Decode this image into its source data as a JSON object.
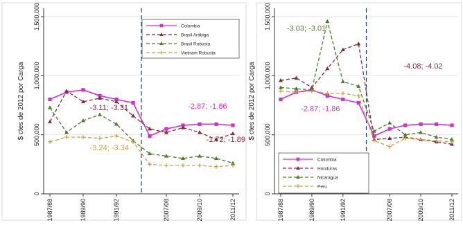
{
  "chart_data": [
    {
      "type": "line",
      "ylabel": "$ ctes de 2012 por Carga",
      "ylim": [
        0,
        1500000
      ],
      "yticks": [
        {
          "value": 0,
          "label": "0"
        },
        {
          "value": 500000,
          "label": "500,000"
        },
        {
          "value": 1000000,
          "label": "1,000,000"
        },
        {
          "value": 1500000,
          "label": "1,500,000"
        }
      ],
      "categories": [
        "1987/88",
        "1988/89",
        "1989/90",
        "1990/91",
        "1991/92",
        "1992/93",
        "2006/07",
        "2007/08",
        "2008/09",
        "2009/10",
        "2010/11",
        "2011/12"
      ],
      "xtick_labels": [
        {
          "index": 0,
          "label": "1987/88"
        },
        {
          "index": 2,
          "label": "1989/90"
        },
        {
          "index": 4,
          "label": "1991/92"
        },
        {
          "index": 7,
          "label": "2007/08"
        },
        {
          "index": 9,
          "label": "2009/10"
        },
        {
          "index": 11,
          "label": "2011/12"
        }
      ],
      "break_after_index": 5.5,
      "legend_position": "top-right",
      "series": [
        {
          "name": "Colombia",
          "color": "#cc33cc",
          "dash": "",
          "marker": "square",
          "values": [
            800000,
            860000,
            880000,
            830000,
            800000,
            770000,
            490000,
            550000,
            580000,
            590000,
            590000,
            580000
          ]
        },
        {
          "name": "Brasil Arábiga",
          "color": "#7a2e3a",
          "dash": "5,3",
          "marker": "triangle",
          "values": [
            610000,
            870000,
            780000,
            810000,
            780000,
            660000,
            550000,
            520000,
            560000,
            520000,
            460000,
            510000
          ]
        },
        {
          "name": "Brasil Robusta",
          "color": "#4a7a2a",
          "dash": "5,3",
          "marker": "triangle",
          "values": [
            730000,
            520000,
            620000,
            670000,
            590000,
            450000,
            340000,
            320000,
            300000,
            320000,
            300000,
            260000
          ]
        },
        {
          "name": "Vietnam Robusta",
          "color": "#c8a040",
          "dash": "5,3",
          "marker": "plus",
          "values": [
            440000,
            480000,
            480000,
            470000,
            490000,
            440000,
            250000,
            240000,
            240000,
            240000,
            230000,
            240000
          ]
        }
      ],
      "annotations": [
        {
          "text": "-3.11; -3.31",
          "color": "#7a2e3a",
          "x": 2.4,
          "y": 710000
        },
        {
          "text": "-3.24; -3.34",
          "color": "#c8a040",
          "x": 2.4,
          "y": 370000
        },
        {
          "text": "-2.87; -1.86",
          "color": "#cc33cc",
          "x": 8.3,
          "y": 720000
        },
        {
          "text": "-1.72; -1.89",
          "color": "#7a2e3a",
          "x": 9.4,
          "y": 440000
        }
      ]
    },
    {
      "type": "line",
      "ylabel": "$ ctes de 2012 por Carga",
      "ylim": [
        0,
        1500000
      ],
      "yticks": [
        {
          "value": 0,
          "label": "0"
        },
        {
          "value": 500000,
          "label": "500,000"
        },
        {
          "value": 1000000,
          "label": "1,000,000"
        },
        {
          "value": 1500000,
          "label": "1,500,000"
        }
      ],
      "categories": [
        "1987/88",
        "1988/89",
        "1989/90",
        "1990/91",
        "1991/92",
        "1992/93",
        "2006/07",
        "2007/08",
        "2008/09",
        "2009/10",
        "2010/11",
        "2011/12"
      ],
      "xtick_labels": [
        {
          "index": 0,
          "label": "1987/88"
        },
        {
          "index": 2,
          "label": "1989/90"
        },
        {
          "index": 4,
          "label": "1991/92"
        },
        {
          "index": 7,
          "label": "2007/08"
        },
        {
          "index": 9,
          "label": "2009/10"
        },
        {
          "index": 11,
          "label": "2011/12"
        }
      ],
      "break_after_index": 5.5,
      "legend_position": "bottom-left",
      "series": [
        {
          "name": "Colombia",
          "color": "#cc33cc",
          "dash": "",
          "marker": "square",
          "values": [
            800000,
            860000,
            880000,
            830000,
            800000,
            770000,
            490000,
            550000,
            580000,
            590000,
            590000,
            580000
          ]
        },
        {
          "name": "Honduras",
          "color": "#7a2e3a",
          "dash": "5,3",
          "marker": "triangle",
          "values": [
            960000,
            980000,
            900000,
            1060000,
            1220000,
            1270000,
            460000,
            470000,
            480000,
            460000,
            440000,
            420000
          ]
        },
        {
          "name": "Nicaragua",
          "color": "#4a7a2a",
          "dash": "5,3",
          "marker": "triangle",
          "values": [
            900000,
            890000,
            880000,
            1460000,
            950000,
            910000,
            530000,
            600000,
            500000,
            520000,
            480000,
            460000
          ]
        },
        {
          "name": "Peru",
          "color": "#c8a040",
          "dash": "5,3",
          "marker": "plus",
          "values": [
            870000,
            860000,
            870000,
            850000,
            850000,
            830000,
            450000,
            400000,
            470000,
            460000,
            450000,
            440000
          ]
        }
      ],
      "annotations": [
        {
          "text": "-3.03; -3.01",
          "color": "#4a7a2a",
          "x": 0.4,
          "y": 1380000
        },
        {
          "text": "-2.87; -1.86",
          "color": "#cc33cc",
          "x": 1.3,
          "y": 700000
        },
        {
          "text": "-4.08; -4.02",
          "color": "#7a2e3a",
          "x": 7.9,
          "y": 1060000
        }
      ]
    }
  ]
}
